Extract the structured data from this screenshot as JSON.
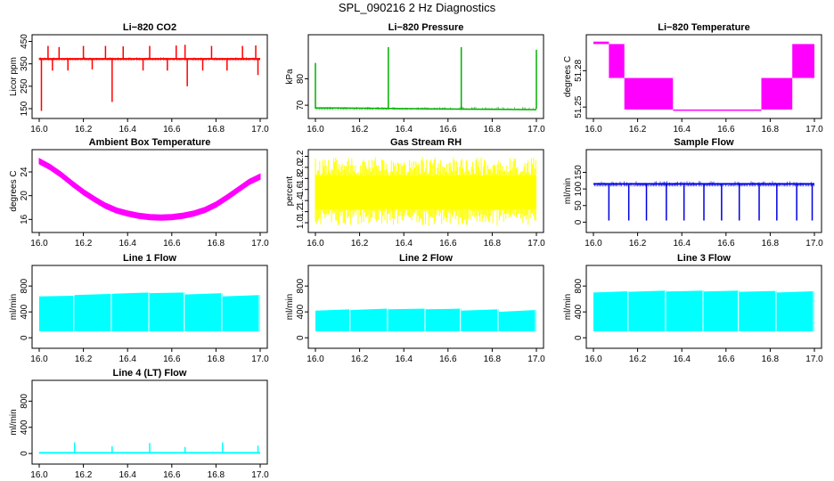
{
  "figure": {
    "title": "SPL_090216  2 Hz Diagnostics"
  },
  "chart_data": [
    {
      "type": "line",
      "title": "Li−820 CO2",
      "xlabel": "",
      "ylabel": "Licor ppm",
      "xlim": [
        16.0,
        17.0
      ],
      "ylim": [
        130,
        460
      ],
      "x_ticks": [
        "16.0",
        "16.2",
        "16.4",
        "16.6",
        "16.8",
        "17.0"
      ],
      "y_ticks": [
        "150",
        "250",
        "350",
        "450"
      ],
      "color": "#ff0000",
      "style": "baseline-spikes",
      "series": [
        {
          "name": "CO2",
          "baseline": 372,
          "band": [
            365,
            380
          ]
        }
      ],
      "spikes_up": [
        [
          16.04,
          430
        ],
        [
          16.09,
          425
        ],
        [
          16.2,
          430
        ],
        [
          16.3,
          430
        ],
        [
          16.38,
          428
        ],
        [
          16.5,
          430
        ],
        [
          16.62,
          432
        ],
        [
          16.66,
          435
        ],
        [
          16.78,
          430
        ],
        [
          16.92,
          430
        ],
        [
          16.98,
          432
        ]
      ],
      "spikes_down": [
        [
          16.01,
          140
        ],
        [
          16.06,
          320
        ],
        [
          16.13,
          320
        ],
        [
          16.24,
          325
        ],
        [
          16.33,
          180
        ],
        [
          16.47,
          320
        ],
        [
          16.58,
          320
        ],
        [
          16.67,
          250
        ],
        [
          16.74,
          320
        ],
        [
          16.85,
          320
        ],
        [
          16.99,
          300
        ]
      ]
    },
    {
      "type": "line",
      "title": "Li−820 Pressure",
      "xlabel": "",
      "ylabel": "kPa",
      "xlim": [
        16.0,
        17.0
      ],
      "ylim": [
        67,
        95
      ],
      "x_ticks": [
        "16.0",
        "16.2",
        "16.4",
        "16.6",
        "16.8",
        "17.0"
      ],
      "y_ticks": [
        "70",
        "80"
      ],
      "color": "#00b000",
      "style": "baseline-spikes",
      "series": [
        {
          "name": "Pressure",
          "baseline_start": 69.0,
          "baseline_end": 68.3,
          "band": [
            68.2,
            69.4
          ]
        }
      ],
      "spikes_up": [
        [
          16.0,
          86
        ],
        [
          16.33,
          92
        ],
        [
          16.66,
          92
        ],
        [
          17.0,
          91
        ]
      ],
      "spikes_down": []
    },
    {
      "type": "line",
      "title": "Li−820 Temperature",
      "xlabel": "",
      "ylabel": "degrees C",
      "xlim": [
        16.0,
        17.0
      ],
      "ylim": [
        51.245,
        51.306
      ],
      "x_ticks": [
        "16.0",
        "16.2",
        "16.4",
        "16.6",
        "16.8",
        "17.0"
      ],
      "y_ticks": [
        "51.25",
        "51.28"
      ],
      "color": "#ff00ff",
      "style": "step-bands",
      "series": [
        {
          "name": "Temperature",
          "segments": [
            {
              "x0": 16.0,
              "x1": 16.07,
              "lo": 51.302,
              "hi": 51.304
            },
            {
              "x0": 16.07,
              "x1": 16.14,
              "lo": 51.274,
              "hi": 51.302
            },
            {
              "x0": 16.14,
              "x1": 16.36,
              "lo": 51.248,
              "hi": 51.274
            },
            {
              "x0": 16.36,
              "x1": 16.76,
              "lo": 51.247,
              "hi": 51.248
            },
            {
              "x0": 16.76,
              "x1": 16.9,
              "lo": 51.248,
              "hi": 51.274
            },
            {
              "x0": 16.9,
              "x1": 17.0,
              "lo": 51.274,
              "hi": 51.302
            }
          ]
        }
      ]
    },
    {
      "type": "line",
      "title": "Ambient Box Temperature",
      "xlabel": "",
      "ylabel": "degrees C",
      "xlim": [
        16.0,
        17.0
      ],
      "ylim": [
        14.7,
        27
      ],
      "x_ticks": [
        "16.0",
        "16.2",
        "16.4",
        "16.6",
        "16.8",
        "17.0"
      ],
      "y_ticks": [
        "16",
        "20",
        "24"
      ],
      "color": "#ff00ff",
      "style": "curve-band",
      "series": [
        {
          "name": "Ambient",
          "x": [
            16.0,
            16.05,
            16.1,
            16.15,
            16.2,
            16.25,
            16.3,
            16.35,
            16.4,
            16.45,
            16.5,
            16.55,
            16.6,
            16.65,
            16.7,
            16.75,
            16.8,
            16.85,
            16.9,
            16.95,
            17.0
          ],
          "values": [
            25.8,
            24.8,
            23.5,
            22.0,
            20.6,
            19.4,
            18.3,
            17.5,
            17.0,
            16.6,
            16.4,
            16.3,
            16.4,
            16.6,
            17.0,
            17.6,
            18.5,
            19.7,
            21.0,
            22.3,
            23.2
          ],
          "band_width": 0.9
        }
      ]
    },
    {
      "type": "line",
      "title": "Gas Stream RH",
      "xlabel": "",
      "ylabel": "percent",
      "xlim": [
        16.0,
        17.0
      ],
      "ylim": [
        0.92,
        2.24
      ],
      "x_ticks": [
        "16.0",
        "16.2",
        "16.4",
        "16.6",
        "16.8",
        "17.0"
      ],
      "y_ticks": [
        "1.0",
        "1.2",
        "1.4",
        "1.6",
        "1.8",
        "2.0",
        "2.2"
      ],
      "color": "#ffff00",
      "style": "noise-band",
      "series": [
        {
          "name": "RH",
          "band": [
            1.25,
            1.85
          ],
          "extremes": [
            0.95,
            2.18
          ]
        }
      ]
    },
    {
      "type": "line",
      "title": "Sample Flow",
      "xlabel": "",
      "ylabel": "ml/min",
      "xlim": [
        16.0,
        17.0
      ],
      "ylim": [
        -15,
        205
      ],
      "x_ticks": [
        "16.0",
        "16.2",
        "16.4",
        "16.6",
        "16.8",
        "17.0"
      ],
      "y_ticks": [
        "0",
        "50",
        "100",
        "150"
      ],
      "color": "#0000e0",
      "style": "baseline-spikes",
      "series": [
        {
          "name": "Flow",
          "baseline": 115,
          "band": [
            108,
            124
          ]
        }
      ],
      "spikes_up": [],
      "spikes_down": [
        [
          16.07,
          5
        ],
        [
          16.16,
          5
        ],
        [
          16.24,
          5
        ],
        [
          16.33,
          5
        ],
        [
          16.41,
          5
        ],
        [
          16.5,
          5
        ],
        [
          16.58,
          5
        ],
        [
          16.66,
          5
        ],
        [
          16.75,
          5
        ],
        [
          16.83,
          5
        ],
        [
          16.92,
          5
        ],
        [
          16.99,
          5
        ]
      ]
    },
    {
      "type": "area",
      "title": "Line 1 Flow",
      "xlabel": "",
      "ylabel": "ml/min",
      "xlim": [
        16.0,
        17.0
      ],
      "ylim": [
        -80,
        1050
      ],
      "x_ticks": [
        "16.0",
        "16.2",
        "16.4",
        "16.6",
        "16.8",
        "17.0"
      ],
      "y_ticks": [
        "0",
        "400",
        "800"
      ],
      "color": "#00ffff",
      "style": "filled-blocks",
      "series": [
        {
          "name": "Line 1",
          "low": 100,
          "blocks": [
            [
              16.0,
              16.16,
              640,
              650
            ],
            [
              16.16,
              16.33,
              660,
              680
            ],
            [
              16.33,
              16.5,
              680,
              700
            ],
            [
              16.5,
              16.66,
              690,
              700
            ],
            [
              16.66,
              16.83,
              670,
              690
            ],
            [
              16.83,
              17.0,
              640,
              660
            ]
          ]
        }
      ]
    },
    {
      "type": "area",
      "title": "Line 2 Flow",
      "xlabel": "",
      "ylabel": "ml/min",
      "xlim": [
        16.0,
        17.0
      ],
      "ylim": [
        -80,
        1050
      ],
      "x_ticks": [
        "16.0",
        "16.2",
        "16.4",
        "16.6",
        "16.8",
        "17.0"
      ],
      "y_ticks": [
        "0",
        "400",
        "800"
      ],
      "color": "#00ffff",
      "style": "filled-blocks",
      "series": [
        {
          "name": "Line 2",
          "low": 100,
          "blocks": [
            [
              16.0,
              16.16,
              420,
              440
            ],
            [
              16.16,
              16.33,
              430,
              450
            ],
            [
              16.33,
              16.5,
              440,
              450
            ],
            [
              16.5,
              16.66,
              440,
              450
            ],
            [
              16.66,
              16.83,
              420,
              440
            ],
            [
              16.83,
              17.0,
              400,
              430
            ]
          ]
        }
      ]
    },
    {
      "type": "area",
      "title": "Line 3 Flow",
      "xlabel": "",
      "ylabel": "ml/min",
      "xlim": [
        16.0,
        17.0
      ],
      "ylim": [
        -80,
        1050
      ],
      "x_ticks": [
        "16.0",
        "16.2",
        "16.4",
        "16.6",
        "16.8",
        "17.0"
      ],
      "y_ticks": [
        "0",
        "400",
        "800"
      ],
      "color": "#00ffff",
      "style": "filled-blocks",
      "series": [
        {
          "name": "Line 3",
          "low": 100,
          "blocks": [
            [
              16.0,
              16.16,
              700,
              720
            ],
            [
              16.16,
              16.33,
              710,
              730
            ],
            [
              16.33,
              16.5,
              715,
              730
            ],
            [
              16.5,
              16.66,
              715,
              730
            ],
            [
              16.66,
              16.83,
              710,
              725
            ],
            [
              16.83,
              17.0,
              700,
              720
            ]
          ]
        }
      ]
    },
    {
      "type": "line",
      "title": "Line 4 (LT) Flow",
      "xlabel": "",
      "ylabel": "ml/min",
      "xlim": [
        16.0,
        17.0
      ],
      "ylim": [
        -80,
        1050
      ],
      "x_ticks": [
        "16.0",
        "16.2",
        "16.4",
        "16.6",
        "16.8",
        "17.0"
      ],
      "y_ticks": [
        "0",
        "400",
        "800"
      ],
      "color": "#00ffff",
      "style": "baseline-spikes",
      "series": [
        {
          "name": "Line 4",
          "baseline": 10,
          "band": [
            0,
            20
          ]
        }
      ],
      "spikes_up": [
        [
          16.16,
          170
        ],
        [
          16.33,
          110
        ],
        [
          16.5,
          160
        ],
        [
          16.66,
          100
        ],
        [
          16.83,
          170
        ],
        [
          16.99,
          120
        ]
      ],
      "spikes_down": []
    }
  ]
}
